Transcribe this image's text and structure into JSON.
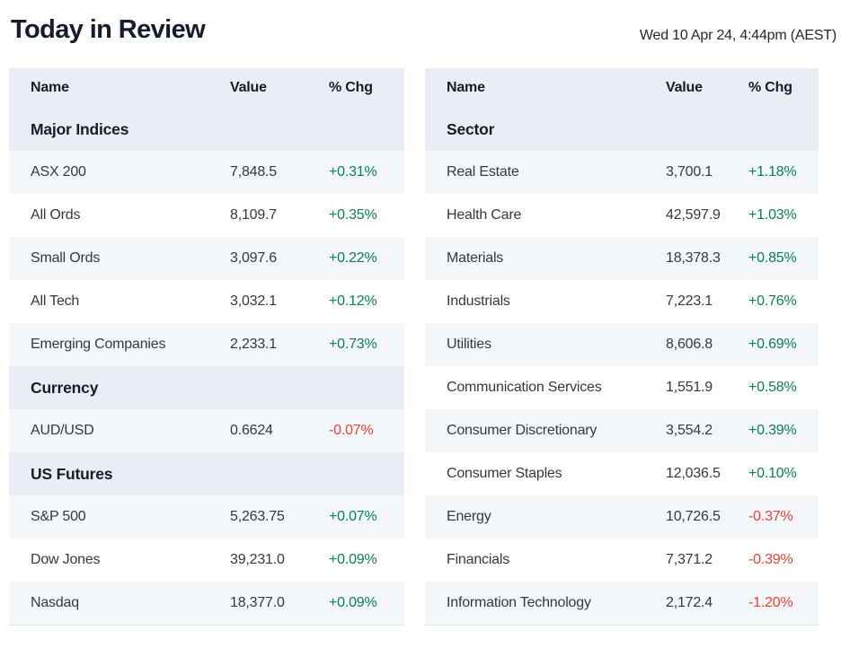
{
  "header": {
    "title": "Today in Review",
    "timestamp": "Wed 10 Apr 24, 4:44pm (AEST)"
  },
  "colors": {
    "positive": "#087f52",
    "negative": "#ee4132",
    "header_band": "#e9eef5",
    "row_stripe": "#f4f7fa",
    "table_border": "#dce4ec",
    "heading_text": "#141c2e",
    "body_text": "#333842"
  },
  "chart_data": [
    {
      "type": "table",
      "table_name": "indices-currency-futures",
      "columns": [
        "Name",
        "Value",
        "% Chg"
      ],
      "sections": [
        {
          "label": "Major Indices",
          "rows": [
            {
              "name": "ASX 200",
              "value": "7,848.5",
              "chg": "+0.31%",
              "dir": "up"
            },
            {
              "name": "All Ords",
              "value": "8,109.7",
              "chg": "+0.35%",
              "dir": "up"
            },
            {
              "name": "Small Ords",
              "value": "3,097.6",
              "chg": "+0.22%",
              "dir": "up"
            },
            {
              "name": "All Tech",
              "value": "3,032.1",
              "chg": "+0.12%",
              "dir": "up"
            },
            {
              "name": "Emerging Companies",
              "value": "2,233.1",
              "chg": "+0.73%",
              "dir": "up"
            }
          ]
        },
        {
          "label": "Currency",
          "rows": [
            {
              "name": "AUD/USD",
              "value": "0.6624",
              "chg": "-0.07%",
              "dir": "down"
            }
          ]
        },
        {
          "label": "US Futures",
          "rows": [
            {
              "name": "S&P 500",
              "value": "5,263.75",
              "chg": "+0.07%",
              "dir": "up"
            },
            {
              "name": "Dow Jones",
              "value": "39,231.0",
              "chg": "+0.09%",
              "dir": "up"
            },
            {
              "name": "Nasdaq",
              "value": "18,377.0",
              "chg": "+0.09%",
              "dir": "up"
            }
          ]
        }
      ]
    },
    {
      "type": "table",
      "table_name": "sectors",
      "columns": [
        "Name",
        "Value",
        "% Chg"
      ],
      "sections": [
        {
          "label": "Sector",
          "rows": [
            {
              "name": "Real Estate",
              "value": "3,700.1",
              "chg": "+1.18%",
              "dir": "up"
            },
            {
              "name": "Health Care",
              "value": "42,597.9",
              "chg": "+1.03%",
              "dir": "up"
            },
            {
              "name": "Materials",
              "value": "18,378.3",
              "chg": "+0.85%",
              "dir": "up"
            },
            {
              "name": "Industrials",
              "value": "7,223.1",
              "chg": "+0.76%",
              "dir": "up"
            },
            {
              "name": "Utilities",
              "value": "8,606.8",
              "chg": "+0.69%",
              "dir": "up"
            },
            {
              "name": "Communication Services",
              "value": "1,551.9",
              "chg": "+0.58%",
              "dir": "up"
            },
            {
              "name": "Consumer Discretionary",
              "value": "3,554.2",
              "chg": "+0.39%",
              "dir": "up"
            },
            {
              "name": "Consumer Staples",
              "value": "12,036.5",
              "chg": "+0.10%",
              "dir": "up"
            },
            {
              "name": "Energy",
              "value": "10,726.5",
              "chg": "-0.37%",
              "dir": "down"
            },
            {
              "name": "Financials",
              "value": "7,371.2",
              "chg": "-0.39%",
              "dir": "down"
            },
            {
              "name": "Information Technology",
              "value": "2,172.4",
              "chg": "-1.20%",
              "dir": "down"
            }
          ]
        }
      ]
    }
  ]
}
